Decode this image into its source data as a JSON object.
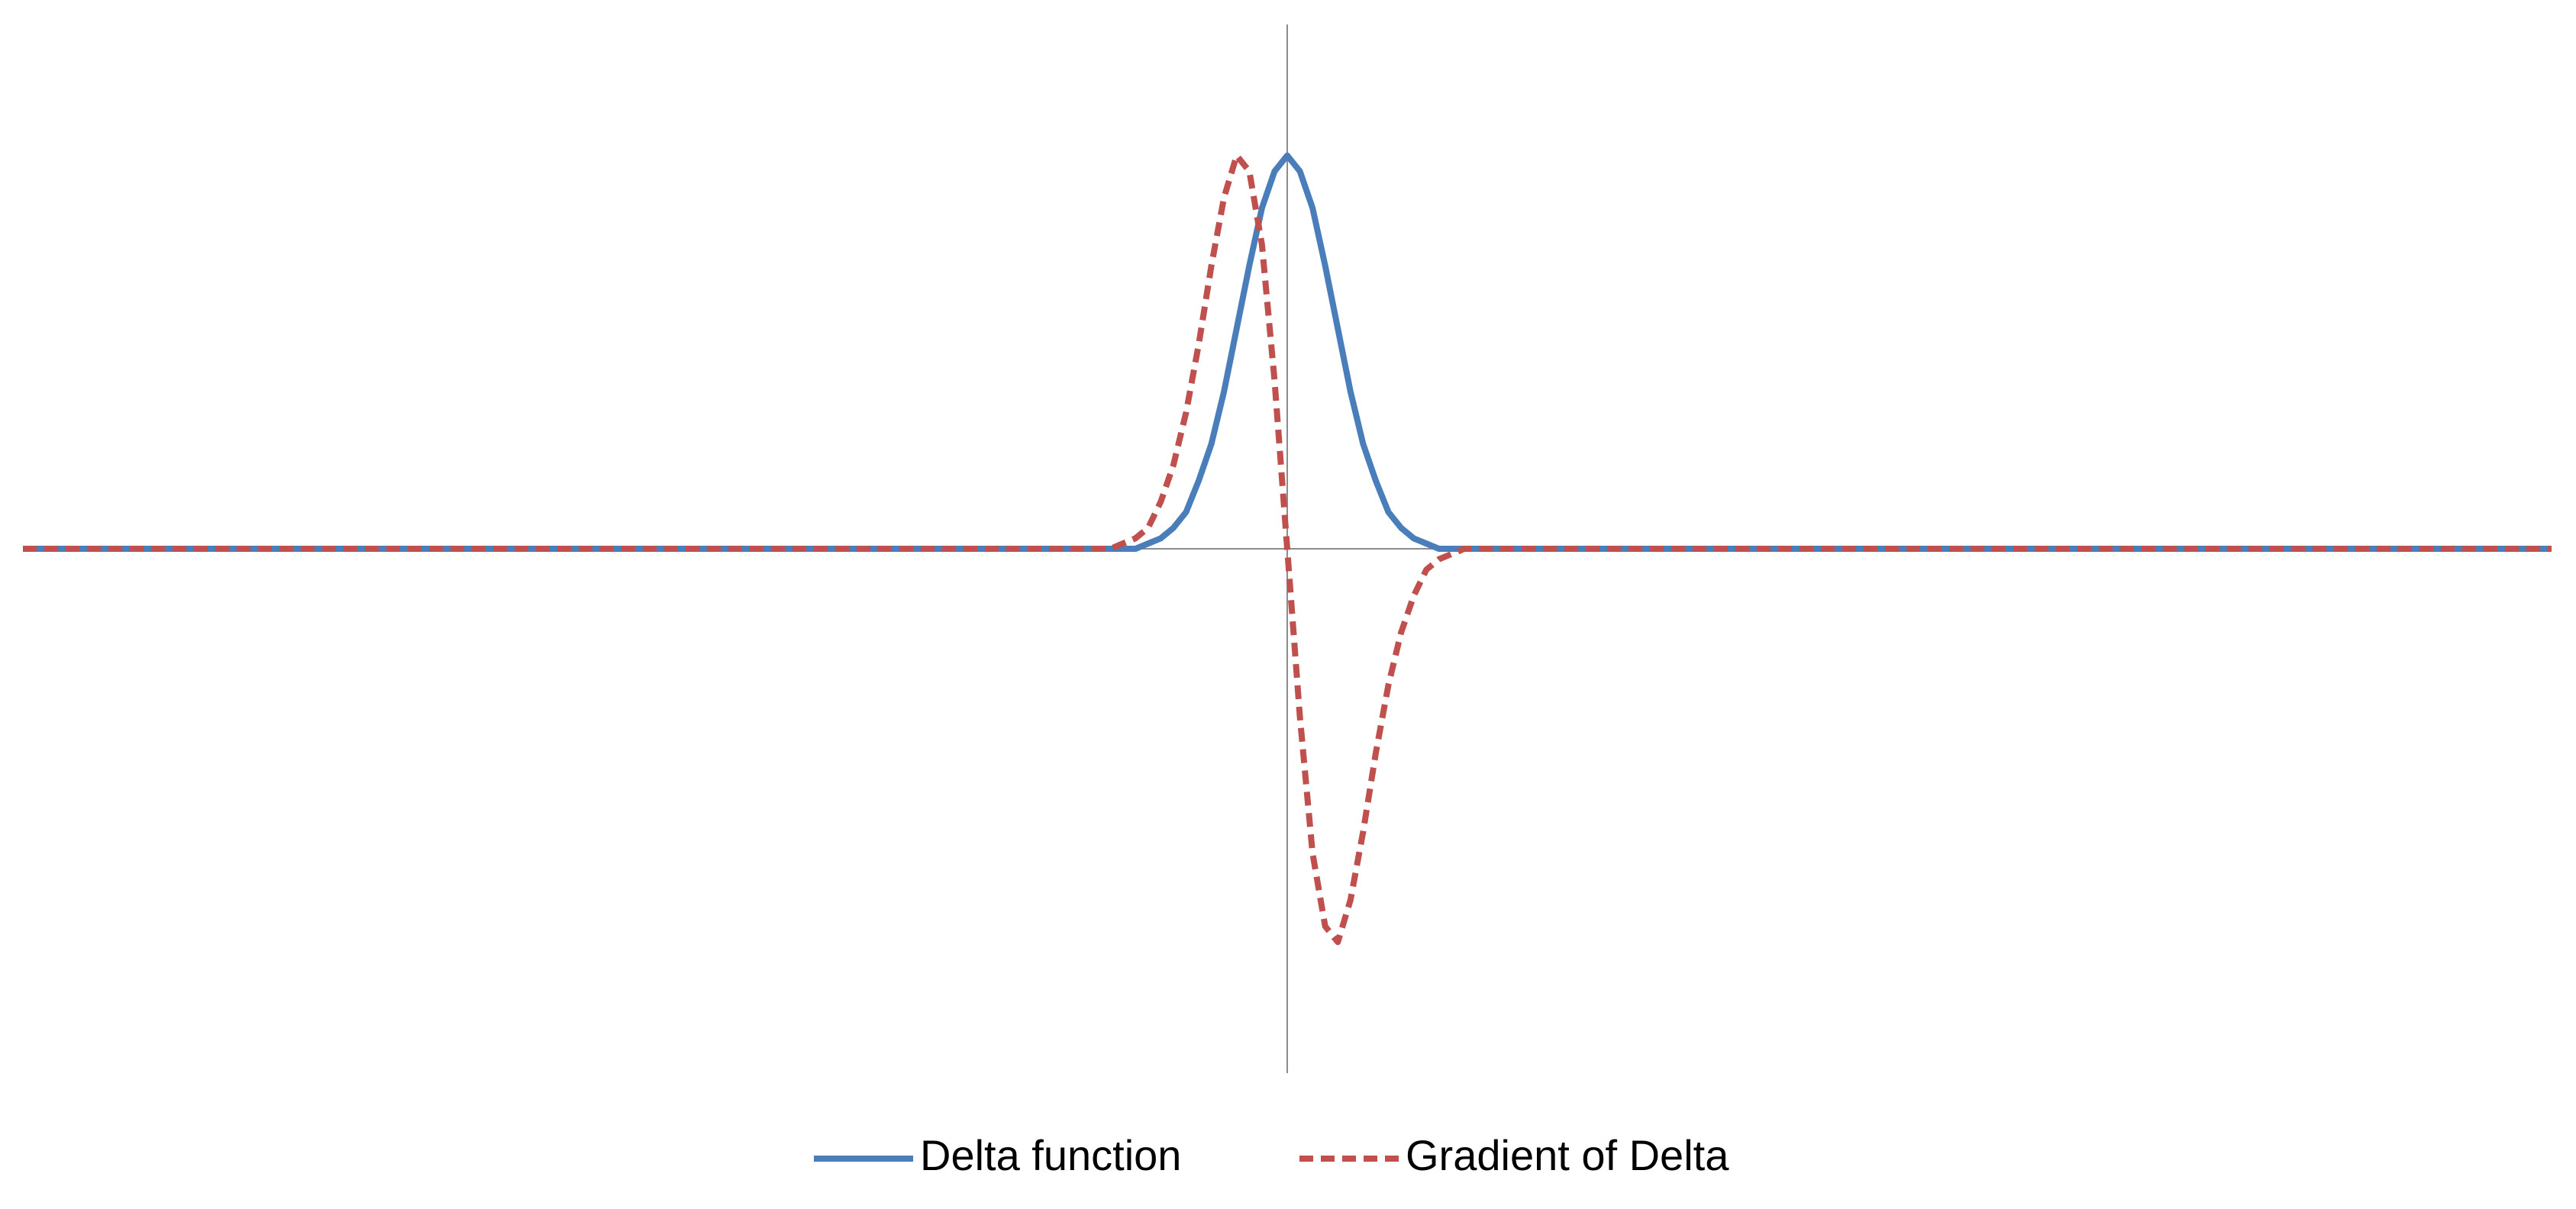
{
  "chart_data": {
    "type": "line",
    "x": [
      -10,
      -3,
      -2,
      -1.5,
      -1.4,
      -1.3,
      -1.2,
      -1.1,
      -1.0,
      -0.9,
      -0.8,
      -0.7,
      -0.6,
      -0.5,
      -0.4,
      -0.3,
      -0.2,
      -0.1,
      0,
      0.1,
      0.2,
      0.3,
      0.4,
      0.5,
      0.6,
      0.7,
      0.8,
      0.9,
      1.0,
      1.1,
      1.2,
      1.3,
      1.4,
      1.5,
      2,
      3,
      10
    ],
    "series": [
      {
        "name": "Delta function",
        "color": "#4a7ebb",
        "dashed": false,
        "values": [
          0,
          0,
          0,
          0,
          0,
          0,
          0,
          0.01,
          0.02,
          0.04,
          0.07,
          0.13,
          0.2,
          0.3,
          0.42,
          0.54,
          0.65,
          0.72,
          0.75,
          0.72,
          0.65,
          0.54,
          0.42,
          0.3,
          0.2,
          0.13,
          0.07,
          0.04,
          0.02,
          0.01,
          0,
          0,
          0,
          0,
          0,
          0,
          0
        ]
      },
      {
        "name": "Gradient of Delta",
        "color": "#c0504d",
        "dashed": true,
        "values": [
          0,
          0,
          0,
          0,
          0,
          0.01,
          0.02,
          0.04,
          0.09,
          0.16,
          0.26,
          0.39,
          0.54,
          0.67,
          0.75,
          0.72,
          0.58,
          0.32,
          0,
          -0.32,
          -0.58,
          -0.72,
          -0.75,
          -0.67,
          -0.54,
          -0.39,
          -0.26,
          -0.16,
          -0.09,
          -0.04,
          -0.02,
          -0.01,
          0,
          0,
          0,
          0,
          0
        ]
      }
    ],
    "xlim": [
      -10,
      10
    ],
    "ylim": [
      -1,
      1
    ],
    "legend": "bottom"
  }
}
